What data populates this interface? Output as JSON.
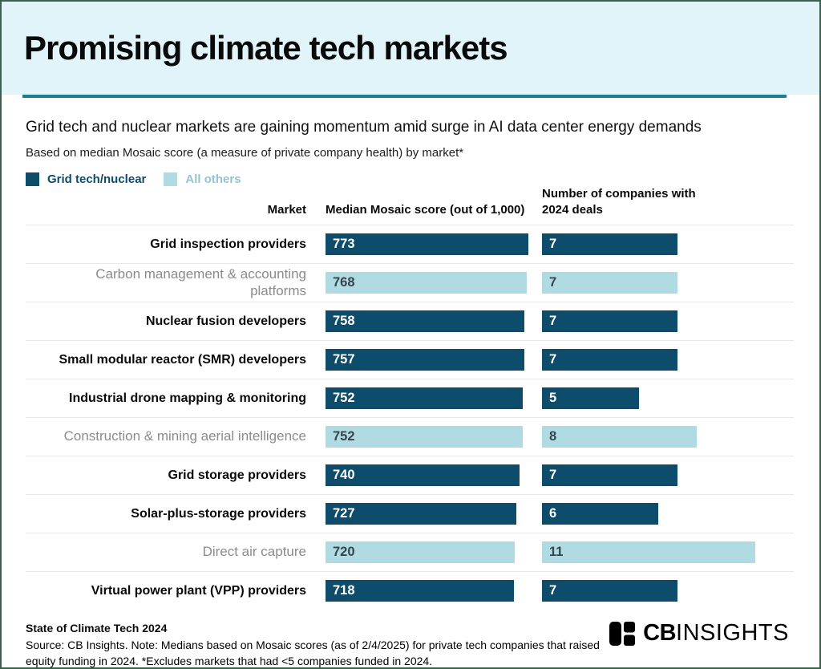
{
  "header": {
    "title": "Promising climate tech markets"
  },
  "subtitle": "Grid tech and nuclear markets are gaining momentum amid surge in AI data center energy demands",
  "methodology": "Based on median Mosaic score (a measure of private company health) by market*",
  "legend": [
    {
      "label": "Grid tech/nuclear",
      "swatch": "#0d4c6b",
      "text": "#0d4c6b"
    },
    {
      "label": "All others",
      "swatch": "#b0dbe3",
      "text": "#92c4d6"
    }
  ],
  "table": {
    "columns": {
      "market": "Market",
      "score": "Median Mosaic score (out of 1,000)",
      "companies": "Number of companies with 2024 deals"
    },
    "rows": [
      {
        "market": "Grid inspection providers",
        "score": 773,
        "companies": 7,
        "group": "grid"
      },
      {
        "market": "Carbon management & accounting platforms",
        "score": 768,
        "companies": 7,
        "group": "others",
        "multiline": true
      },
      {
        "market": "Nuclear fusion developers",
        "score": 758,
        "companies": 7,
        "group": "grid"
      },
      {
        "market": "Small modular reactor (SMR) developers",
        "score": 757,
        "companies": 7,
        "group": "grid"
      },
      {
        "market": "Industrial drone mapping & monitoring",
        "score": 752,
        "companies": 5,
        "group": "grid"
      },
      {
        "market": "Construction & mining aerial intelligence",
        "score": 752,
        "companies": 8,
        "group": "others"
      },
      {
        "market": "Grid storage providers",
        "score": 740,
        "companies": 7,
        "group": "grid"
      },
      {
        "market": "Solar-plus-storage providers",
        "score": 727,
        "companies": 6,
        "group": "grid"
      },
      {
        "market": "Direct air capture",
        "score": 720,
        "companies": 11,
        "group": "others"
      },
      {
        "market": "Virtual power plant (VPP) providers",
        "score": 718,
        "companies": 7,
        "group": "grid"
      }
    ]
  },
  "chart_data": {
    "type": "bar",
    "orientation": "horizontal",
    "title": "Promising climate tech markets",
    "subtitle": "Grid tech and nuclear markets are gaining momentum amid surge in AI data center energy demands",
    "categories": [
      "Grid inspection providers",
      "Carbon management & accounting platforms",
      "Nuclear fusion developers",
      "Small modular reactor (SMR) developers",
      "Industrial drone mapping & monitoring",
      "Construction & mining aerial intelligence",
      "Grid storage providers",
      "Solar-plus-storage providers",
      "Direct air capture",
      "Virtual power plant (VPP) providers"
    ],
    "series": [
      {
        "name": "Median Mosaic score (out of 1,000)",
        "values": [
          773,
          768,
          758,
          757,
          752,
          752,
          740,
          727,
          720,
          718
        ]
      },
      {
        "name": "Number of companies with 2024 deals",
        "values": [
          7,
          7,
          7,
          7,
          5,
          8,
          7,
          6,
          11,
          7
        ]
      }
    ],
    "color_groups": [
      "Grid tech/nuclear",
      "All others",
      "Grid tech/nuclear",
      "Grid tech/nuclear",
      "Grid tech/nuclear",
      "All others",
      "Grid tech/nuclear",
      "Grid tech/nuclear",
      "All others",
      "Grid tech/nuclear"
    ],
    "legend_position": "top-left",
    "grid": false,
    "data_labels": true
  },
  "footer": {
    "report_title": "State of Climate Tech 2024",
    "source_note": "Source: CB Insights. Note: Medians based on Mosaic scores (as of 2/4/2025) for private tech companies that raised equity funding in 2024. *Excludes markets that had <5 companies funded in 2024."
  },
  "logo": {
    "cb": "CB",
    "insights": "INSIGHTS"
  },
  "colors": {
    "header_bg": "#e1f4fa",
    "accent_rule": "#187f95",
    "dark_bar": "#0d4c6b",
    "light_bar": "#b0dbe3",
    "gray_label": "#8b8b8b",
    "value_on_light": "#36454d",
    "separator": "#e7e7e7",
    "page_border": "#3f5f4d"
  }
}
